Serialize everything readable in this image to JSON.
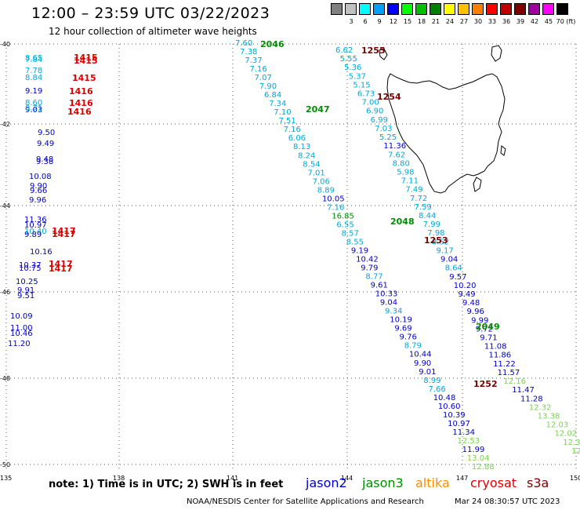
{
  "header": {
    "title": "12:00 – 23:59 UTC 03/22/2023",
    "subtitle": "12 hour collection of altimeter wave heights"
  },
  "legend": {
    "levels": [
      {
        "label": "",
        "color": "#808080"
      },
      {
        "label": "3",
        "color": "#c0c0c0"
      },
      {
        "label": "6",
        "color": "#00ffff"
      },
      {
        "label": "9",
        "color": "#00a0ff"
      },
      {
        "label": "12",
        "color": "#0000ff"
      },
      {
        "label": "15",
        "color": "#00ff00"
      },
      {
        "label": "18",
        "color": "#00c000"
      },
      {
        "label": "21",
        "color": "#008000"
      },
      {
        "label": "24",
        "color": "#ffff00"
      },
      {
        "label": "27",
        "color": "#ffc000"
      },
      {
        "label": "30",
        "color": "#ff8000"
      },
      {
        "label": "33",
        "color": "#ff0000"
      },
      {
        "label": "36",
        "color": "#c00000"
      },
      {
        "label": "39",
        "color": "#800000"
      },
      {
        "label": "42",
        "color": "#a000a0"
      },
      {
        "label": "45",
        "color": "#ff00ff"
      },
      {
        "label": "70 (ft)",
        "color": "#000000"
      }
    ]
  },
  "axes": {
    "lat_labels": [
      "-40",
      "-42",
      "-44",
      "-46",
      "-48",
      "-50"
    ],
    "lon_labels": [
      "135",
      "138",
      "141",
      "144",
      "147",
      "150"
    ]
  },
  "colors": {
    "jason2": "#0000c8",
    "jason3": "#008c00",
    "altika": "#ff8c00",
    "cryosat": "#dc0000",
    "s3a": "#780000",
    "cyan": "#00a8d8",
    "teal": "#3cbecf",
    "lightgreen": "#78d250"
  },
  "tracks": {
    "left_strip": [
      {
        "v": "8.65",
        "c": "cyan"
      },
      {
        "v": "7.84",
        "c": "cyan"
      },
      {
        "v": "7.78",
        "c": "cyan"
      },
      {
        "v": "8.84",
        "c": "cyan"
      },
      {
        "v": "9.19",
        "c": "jason2"
      },
      {
        "v": "8.60",
        "c": "cyan"
      },
      {
        "v": "9.03",
        "c": "jason2"
      },
      {
        "v": "8.71",
        "c": "cyan"
      },
      {
        "v": "9.50",
        "c": "jason2"
      },
      {
        "v": "9.49",
        "c": "jason2"
      },
      {
        "v": "9.48",
        "c": "jason2"
      },
      {
        "v": "9.38",
        "c": "jason2"
      },
      {
        "v": "10.08",
        "c": "jason2"
      },
      {
        "v": "9.90",
        "c": "jason2"
      },
      {
        "v": "9.66",
        "c": "jason2"
      },
      {
        "v": "9.96",
        "c": "jason2"
      },
      {
        "v": "11.36",
        "c": "jason2"
      },
      {
        "v": "10.97",
        "c": "jason2"
      },
      {
        "v": "10.40",
        "c": "cyan"
      },
      {
        "v": "9.89",
        "c": "jason2"
      },
      {
        "v": "10.16",
        "c": "jason2"
      },
      {
        "v": "10.37",
        "c": "jason2"
      },
      {
        "v": "10.75",
        "c": "jason2"
      },
      {
        "v": "10.25",
        "c": "jason2"
      },
      {
        "v": "9.91",
        "c": "jason2"
      },
      {
        "v": "9.51",
        "c": "jason2"
      },
      {
        "v": "10.09",
        "c": "jason2"
      },
      {
        "v": "11.00",
        "c": "jason2"
      },
      {
        "v": "10.46",
        "c": "jason2"
      },
      {
        "v": "11.20",
        "c": "jason2"
      }
    ],
    "track_a": [
      {
        "v": "7.60",
        "c": "cyan"
      },
      {
        "v": "7.38",
        "c": "cyan"
      },
      {
        "v": "7.37",
        "c": "cyan"
      },
      {
        "v": "7.16",
        "c": "cyan"
      },
      {
        "v": "7.07",
        "c": "cyan"
      },
      {
        "v": "7.90",
        "c": "cyan"
      },
      {
        "v": "6.84",
        "c": "cyan"
      },
      {
        "v": "7.34",
        "c": "cyan"
      },
      {
        "v": "7.10",
        "c": "cyan"
      },
      {
        "v": "7.51",
        "c": "cyan"
      },
      {
        "v": "7.16",
        "c": "cyan"
      },
      {
        "v": "6.06",
        "c": "cyan"
      },
      {
        "v": "8.13",
        "c": "cyan"
      },
      {
        "v": "8.24",
        "c": "cyan"
      },
      {
        "v": "8.54",
        "c": "cyan"
      },
      {
        "v": "7.01",
        "c": "cyan"
      },
      {
        "v": "7.06",
        "c": "cyan"
      },
      {
        "v": "8.89",
        "c": "cyan"
      },
      {
        "v": "10.05",
        "c": "jason2"
      },
      {
        "v": "7.16",
        "c": "cyan"
      },
      {
        "v": "16.85",
        "c": "jason3"
      },
      {
        "v": "6.55",
        "c": "cyan"
      },
      {
        "v": "8.57",
        "c": "cyan"
      },
      {
        "v": "8.55",
        "c": "cyan"
      },
      {
        "v": "9.19",
        "c": "jason2"
      },
      {
        "v": "10.42",
        "c": "jason2"
      },
      {
        "v": "9.79",
        "c": "jason2"
      },
      {
        "v": "8.77",
        "c": "cyan"
      },
      {
        "v": "9.61",
        "c": "jason2"
      },
      {
        "v": "10.33",
        "c": "jason2"
      },
      {
        "v": "9.04",
        "c": "jason2"
      },
      {
        "v": "9.34",
        "c": "cyan"
      },
      {
        "v": "10.19",
        "c": "jason2"
      },
      {
        "v": "9.69",
        "c": "jason2"
      },
      {
        "v": "9.76",
        "c": "jason2"
      },
      {
        "v": "8.79",
        "c": "cyan"
      },
      {
        "v": "10.44",
        "c": "jason2"
      },
      {
        "v": "9.90",
        "c": "jason2"
      },
      {
        "v": "9.01",
        "c": "jason2"
      },
      {
        "v": "8.99",
        "c": "cyan"
      },
      {
        "v": "7.66",
        "c": "cyan"
      },
      {
        "v": "10.48",
        "c": "jason2"
      },
      {
        "v": "10.60",
        "c": "jason2"
      },
      {
        "v": "10.39",
        "c": "jason2"
      },
      {
        "v": "10.97",
        "c": "jason2"
      },
      {
        "v": "11.34",
        "c": "jason2"
      },
      {
        "v": "12.53",
        "c": "lightgreen"
      },
      {
        "v": "11.99",
        "c": "jason2"
      },
      {
        "v": "13.04",
        "c": "lightgreen"
      },
      {
        "v": "12.88",
        "c": "lightgreen"
      }
    ],
    "track_b": [
      {
        "v": "6.62",
        "c": "cyan"
      },
      {
        "v": "5.55",
        "c": "cyan"
      },
      {
        "v": "5.36",
        "c": "cyan"
      },
      {
        "v": "5.37",
        "c": "cyan"
      },
      {
        "v": "5.15",
        "c": "cyan"
      },
      {
        "v": "6.73",
        "c": "cyan"
      },
      {
        "v": "7.00",
        "c": "cyan"
      },
      {
        "v": "6.90",
        "c": "cyan"
      },
      {
        "v": "6.99",
        "c": "cyan"
      },
      {
        "v": "7.03",
        "c": "cyan"
      },
      {
        "v": "5.25",
        "c": "cyan"
      },
      {
        "v": "11.36",
        "c": "jason2"
      },
      {
        "v": "7.62",
        "c": "cyan"
      },
      {
        "v": "8.80",
        "c": "cyan"
      },
      {
        "v": "5.98",
        "c": "cyan"
      },
      {
        "v": "7.11",
        "c": "cyan"
      },
      {
        "v": "7.49",
        "c": "cyan"
      },
      {
        "v": "7.72",
        "c": "cyan"
      },
      {
        "v": "7.59",
        "c": "cyan"
      },
      {
        "v": "8.44",
        "c": "cyan"
      },
      {
        "v": "7.99",
        "c": "cyan"
      },
      {
        "v": "7.98",
        "c": "cyan"
      },
      {
        "v": "8.52",
        "c": "cyan"
      },
      {
        "v": "9.17",
        "c": "cyan"
      },
      {
        "v": "9.04",
        "c": "jason2"
      },
      {
        "v": "8.64",
        "c": "cyan"
      },
      {
        "v": "9.57",
        "c": "jason2"
      },
      {
        "v": "10.20",
        "c": "jason2"
      },
      {
        "v": "9.49",
        "c": "jason2"
      },
      {
        "v": "9.48",
        "c": "jason2"
      },
      {
        "v": "9.96",
        "c": "jason2"
      },
      {
        "v": "9.99",
        "c": "jason2"
      },
      {
        "v": "9.72",
        "c": "jason2"
      },
      {
        "v": "9.71",
        "c": "jason2"
      },
      {
        "v": "11.08",
        "c": "jason2"
      },
      {
        "v": "11.86",
        "c": "jason2"
      },
      {
        "v": "11.22",
        "c": "jason2"
      },
      {
        "v": "11.57",
        "c": "jason2"
      },
      {
        "v": "12.16",
        "c": "lightgreen"
      },
      {
        "v": "11.47",
        "c": "jason2"
      },
      {
        "v": "11.28",
        "c": "jason2"
      },
      {
        "v": "12.32",
        "c": "lightgreen"
      },
      {
        "v": "13.38",
        "c": "lightgreen"
      },
      {
        "v": "12.03",
        "c": "lightgreen"
      },
      {
        "v": "12.02",
        "c": "lightgreen"
      },
      {
        "v": "12.33",
        "c": "lightgreen"
      },
      {
        "v": "12.28",
        "c": "lightgreen"
      },
      {
        "v": "12.7",
        "c": "lightgreen"
      }
    ]
  },
  "time_labels": [
    {
      "t": "1415",
      "c": "cryosat"
    },
    {
      "t": "1415",
      "c": "cryosat"
    },
    {
      "t": "1415",
      "c": "cryosat"
    },
    {
      "t": "1416",
      "c": "cryosat"
    },
    {
      "t": "1416",
      "c": "cryosat"
    },
    {
      "t": "1416",
      "c": "cryosat"
    },
    {
      "t": "1417",
      "c": "cryosat"
    },
    {
      "t": "1417",
      "c": "cryosat"
    },
    {
      "t": "1417",
      "c": "cryosat"
    },
    {
      "t": "1417",
      "c": "cryosat"
    },
    {
      "t": "2046",
      "c": "jason3"
    },
    {
      "t": "2047",
      "c": "jason3"
    },
    {
      "t": "2048",
      "c": "jason3"
    },
    {
      "t": "2049",
      "c": "jason3"
    },
    {
      "t": "1255",
      "c": "s3a"
    },
    {
      "t": "1254",
      "c": "s3a"
    },
    {
      "t": "1253",
      "c": "s3a"
    },
    {
      "t": "1252",
      "c": "s3a"
    }
  ],
  "footer": {
    "note": "note:  1) Time is in UTC; 2) SWH is in feet",
    "satellites": [
      {
        "name": "jason2",
        "color": "#0000c8"
      },
      {
        "name": "jason3",
        "color": "#008c00"
      },
      {
        "name": "altika",
        "color": "#ff8c00"
      },
      {
        "name": "cryosat",
        "color": "#dc0000"
      },
      {
        "name": "s3a",
        "color": "#780000"
      }
    ],
    "credit": "NOAA/NESDIS Center for Satellite Applications and Research",
    "timestamp": "Mar 24 08:30:57 UTC 2023"
  }
}
